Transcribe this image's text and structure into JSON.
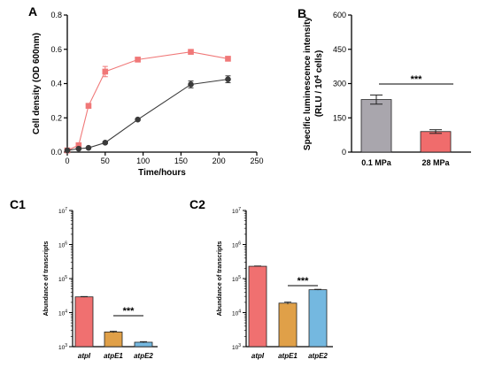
{
  "chart_data": [
    {
      "panel": "A",
      "type": "line",
      "xlabel": "Time/hours",
      "ylabel": "Cell density (OD 600nm)",
      "xlim": [
        0,
        250
      ],
      "ylim": [
        0,
        0.8
      ],
      "xticks": [
        0,
        50,
        100,
        150,
        200,
        250
      ],
      "yticks": [
        0.0,
        0.2,
        0.4,
        0.6,
        0.8
      ],
      "ytick_labels": [
        "0.0",
        "0.2",
        "0.4",
        "0.6",
        "0.8"
      ],
      "series": [
        {
          "color": "#f07878",
          "marker": "square",
          "x": [
            0,
            15,
            28,
            50,
            93,
            163,
            212
          ],
          "y": [
            0.01,
            0.04,
            0.27,
            0.47,
            0.54,
            0.585,
            0.545
          ],
          "err": [
            0,
            0.005,
            0.01,
            0.03,
            0.01,
            0.01,
            0.01
          ]
        },
        {
          "color": "#3a3a3a",
          "marker": "circle",
          "x": [
            0,
            15,
            28,
            50,
            93,
            163,
            212
          ],
          "y": [
            0.01,
            0.02,
            0.025,
            0.055,
            0.19,
            0.395,
            0.425
          ],
          "err": [
            0,
            0.003,
            0.003,
            0.005,
            0.005,
            0.02,
            0.02
          ]
        }
      ]
    },
    {
      "panel": "B",
      "type": "bar",
      "categories": [
        "0.1 MPa",
        "28 MPa"
      ],
      "values": [
        230,
        90
      ],
      "errors": [
        20,
        8
      ],
      "colors": [
        "#a9a6ad",
        "#f06c6c"
      ],
      "ylabel_line1": "Specific luminescence intensity",
      "ylabel_line2_pre": "(RLU / 10",
      "ylabel_line2_sup": "4",
      "ylabel_line2_post": " cells)",
      "ylim": [
        0,
        600
      ],
      "yticks": [
        0,
        150,
        300,
        450,
        600
      ],
      "significance": "***"
    },
    {
      "panel": "C1",
      "type": "bar",
      "categories": [
        "atpI",
        "atpE1",
        "atpE2"
      ],
      "values": [
        29000,
        2700,
        1350
      ],
      "errors": [
        800,
        150,
        60
      ],
      "colors": [
        "#f07070",
        "#e0a048",
        "#74b8e0"
      ],
      "ylabel": "Abundance of transcripts",
      "yscale": "log",
      "ylim": [
        1000,
        10000000
      ],
      "tick_base": "10",
      "tick_exponents": [
        "3",
        "4",
        "5",
        "6",
        "7"
      ],
      "significance": "***"
    },
    {
      "panel": "C2",
      "type": "bar",
      "categories": [
        "atpI",
        "atpE1",
        "atpE2"
      ],
      "values": [
        230000,
        19000,
        47000
      ],
      "errors": [
        5000,
        1500,
        1500
      ],
      "colors": [
        "#f07070",
        "#e0a048",
        "#74b8e0"
      ],
      "ylabel": "Abundance of transcripts",
      "yscale": "log",
      "ylim": [
        1000,
        10000000
      ],
      "tick_base": "10",
      "tick_exponents": [
        "3",
        "4",
        "5",
        "6",
        "7"
      ],
      "significance": "***"
    }
  ]
}
